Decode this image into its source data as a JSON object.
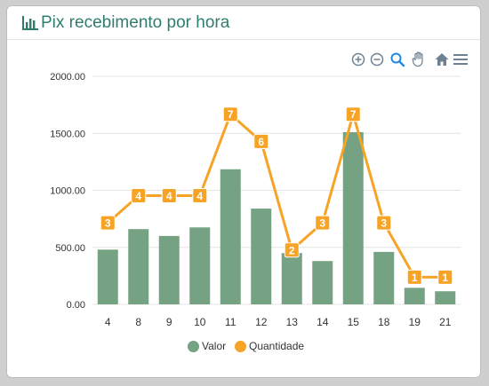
{
  "card": {
    "title": "Pix recebimento por hora",
    "title_icon": "bar-chart-icon"
  },
  "toolbar": {
    "buttons": [
      "zoom-in-icon",
      "zoom-out-icon",
      "selection-zoom-icon",
      "pan-hand-icon",
      "reset-home-icon",
      "menu-icon"
    ]
  },
  "legend": {
    "items": [
      {
        "label": "Valor",
        "color": "#75a283"
      },
      {
        "label": "Quantidade",
        "color": "#f7a325"
      }
    ]
  },
  "chart_data": {
    "type": "bar",
    "categories": [
      "4",
      "8",
      "9",
      "10",
      "11",
      "12",
      "13",
      "14",
      "15",
      "18",
      "19",
      "21"
    ],
    "series": [
      {
        "name": "Valor",
        "type": "bar",
        "color": "#75a283",
        "values": [
          480,
          660,
          600,
          675,
          1185,
          840,
          450,
          380,
          1510,
          460,
          145,
          115
        ]
      },
      {
        "name": "Quantidade",
        "type": "line",
        "color": "#f7a325",
        "values": [
          3,
          4,
          4,
          4,
          7,
          6,
          2,
          3,
          7,
          3,
          1,
          1
        ]
      }
    ],
    "ylim": [
      0,
      2000
    ],
    "yticks": [
      "0.00",
      "500.00",
      "1000.00",
      "1500.00",
      "2000.00"
    ],
    "grid": true,
    "legend_position": "bottom"
  }
}
